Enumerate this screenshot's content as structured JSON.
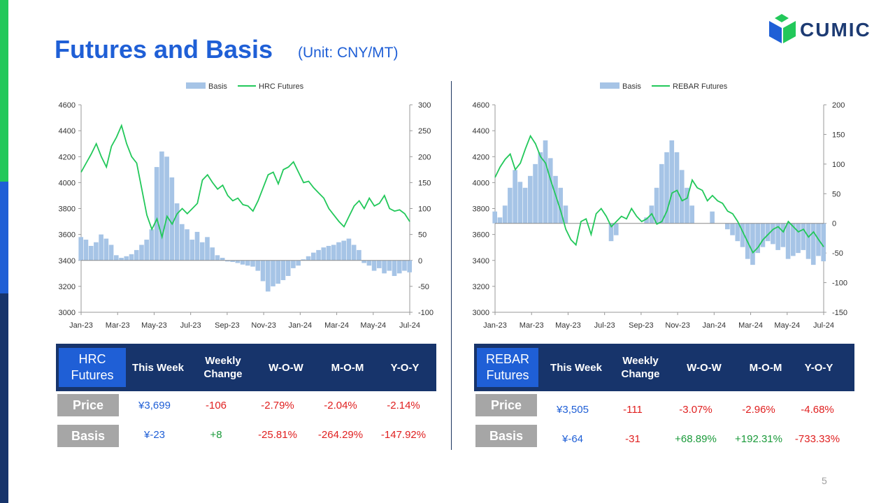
{
  "page": {
    "title": "Futures and Basis",
    "unit": "(Unit: CNY/MT)",
    "logo_text": "CUMIC",
    "page_number": "5"
  },
  "colors": {
    "basis": "#a6c4e6",
    "futures": "#22c85a",
    "title": "#1f5fd6",
    "header": "#17346b",
    "header_first": "#1f5fd6",
    "red": "#e02020",
    "green": "#1a9a3a",
    "blue": "#1f5fd6"
  },
  "chart_data": [
    {
      "type": "area",
      "legend": [
        "Basis",
        "HRC Futures"
      ],
      "x_ticks": [
        "Jan-23",
        "Mar-23",
        "May-23",
        "Jul-23",
        "Sep-23",
        "Nov-23",
        "Jan-24",
        "Mar-24",
        "May-24",
        "Jul-24"
      ],
      "y_left": {
        "min": 3000,
        "max": 4600,
        "ticks": [
          3000,
          3200,
          3400,
          3600,
          3800,
          4000,
          4200,
          4400,
          4600
        ]
      },
      "y_right": {
        "min": -100,
        "max": 300,
        "ticks": [
          -100,
          -50,
          0,
          50,
          100,
          150,
          200,
          250,
          300
        ]
      },
      "series": [
        {
          "name": "HRC Futures",
          "axis": "left",
          "values": [
            4080,
            4150,
            4220,
            4300,
            4200,
            4120,
            4280,
            4350,
            4440,
            4300,
            4200,
            4150,
            3950,
            3750,
            3640,
            3720,
            3580,
            3740,
            3680,
            3760,
            3800,
            3760,
            3800,
            3840,
            4020,
            4060,
            4000,
            3950,
            3980,
            3900,
            3860,
            3880,
            3830,
            3820,
            3780,
            3860,
            3960,
            4060,
            4080,
            3990,
            4100,
            4120,
            4160,
            4080,
            4000,
            4010,
            3960,
            3920,
            3880,
            3800,
            3750,
            3700,
            3660,
            3740,
            3820,
            3860,
            3800,
            3880,
            3820,
            3840,
            3900,
            3800,
            3780,
            3790,
            3760,
            3699
          ]
        },
        {
          "name": "Basis",
          "axis": "right",
          "values": [
            45,
            40,
            28,
            35,
            50,
            42,
            30,
            10,
            5,
            8,
            12,
            20,
            30,
            40,
            60,
            180,
            210,
            200,
            160,
            110,
            70,
            60,
            40,
            55,
            35,
            45,
            25,
            10,
            5,
            -2,
            -3,
            -5,
            -8,
            -10,
            -12,
            -20,
            -40,
            -60,
            -50,
            -45,
            -38,
            -30,
            -15,
            -10,
            2,
            8,
            15,
            20,
            25,
            28,
            30,
            35,
            38,
            42,
            30,
            20,
            -5,
            -10,
            -20,
            -15,
            -25,
            -20,
            -30,
            -25,
            -20,
            -23
          ]
        }
      ]
    },
    {
      "type": "area",
      "legend": [
        "Basis",
        "REBAR Futures"
      ],
      "x_ticks": [
        "Jan-23",
        "Mar-23",
        "May-23",
        "Jul-23",
        "Sep-23",
        "Nov-23",
        "Jan-24",
        "Mar-24",
        "May-24",
        "Jul-24"
      ],
      "y_left": {
        "min": 3000,
        "max": 4600,
        "ticks": [
          3000,
          3200,
          3400,
          3600,
          3800,
          4000,
          4200,
          4400,
          4600
        ]
      },
      "y_right": {
        "min": -150,
        "max": 200,
        "ticks": [
          -150,
          -100,
          -50,
          0,
          50,
          100,
          150,
          200
        ]
      },
      "series": [
        {
          "name": "REBAR Futures",
          "axis": "left",
          "values": [
            4040,
            4120,
            4180,
            4220,
            4100,
            4150,
            4260,
            4360,
            4300,
            4200,
            4150,
            4020,
            3900,
            3780,
            3640,
            3560,
            3520,
            3700,
            3720,
            3600,
            3760,
            3800,
            3740,
            3660,
            3700,
            3740,
            3720,
            3800,
            3740,
            3700,
            3720,
            3760,
            3680,
            3700,
            3780,
            3920,
            3940,
            3860,
            3880,
            4020,
            3960,
            3940,
            3860,
            3900,
            3860,
            3840,
            3780,
            3760,
            3700,
            3620,
            3540,
            3460,
            3500,
            3560,
            3600,
            3640,
            3660,
            3620,
            3700,
            3660,
            3620,
            3640,
            3580,
            3620,
            3560,
            3505
          ]
        },
        {
          "name": "Basis",
          "axis": "right",
          "values": [
            20,
            10,
            30,
            60,
            90,
            70,
            60,
            80,
            100,
            120,
            140,
            110,
            80,
            60,
            30,
            0,
            0,
            0,
            0,
            0,
            0,
            0,
            0,
            -30,
            -20,
            0,
            0,
            0,
            0,
            0,
            10,
            30,
            60,
            100,
            120,
            140,
            120,
            90,
            60,
            30,
            0,
            0,
            0,
            20,
            0,
            0,
            -10,
            -20,
            -30,
            -40,
            -60,
            -70,
            -50,
            -40,
            -30,
            -35,
            -45,
            -40,
            -60,
            -55,
            -50,
            -45,
            -60,
            -70,
            -55,
            -64
          ]
        }
      ]
    }
  ],
  "hrc_table": {
    "header_first": "HRC Futures",
    "headers": [
      "This Week",
      "Weekly Change",
      "W-O-W",
      "M-O-M",
      "Y-O-Y"
    ],
    "price_label": "Price",
    "basis_label": "Basis",
    "price": [
      "¥3,699",
      "-106",
      "-2.79%",
      "-2.04%",
      "-2.14%"
    ],
    "basis": [
      "¥-23",
      "+8",
      "-25.81%",
      "-264.29%",
      "-147.92%"
    ]
  },
  "rebar_table": {
    "header_first": "REBAR Futures",
    "headers": [
      "This Week",
      "Weekly Change",
      "W-O-W",
      "M-O-M",
      "Y-O-Y"
    ],
    "price_label": "Price",
    "basis_label": "Basis",
    "price": [
      "¥3,505",
      "-111",
      "-3.07%",
      "-2.96%",
      "-4.68%"
    ],
    "basis": [
      "¥-64",
      "-31",
      "+68.89%",
      "+192.31%",
      "-733.33%"
    ]
  }
}
